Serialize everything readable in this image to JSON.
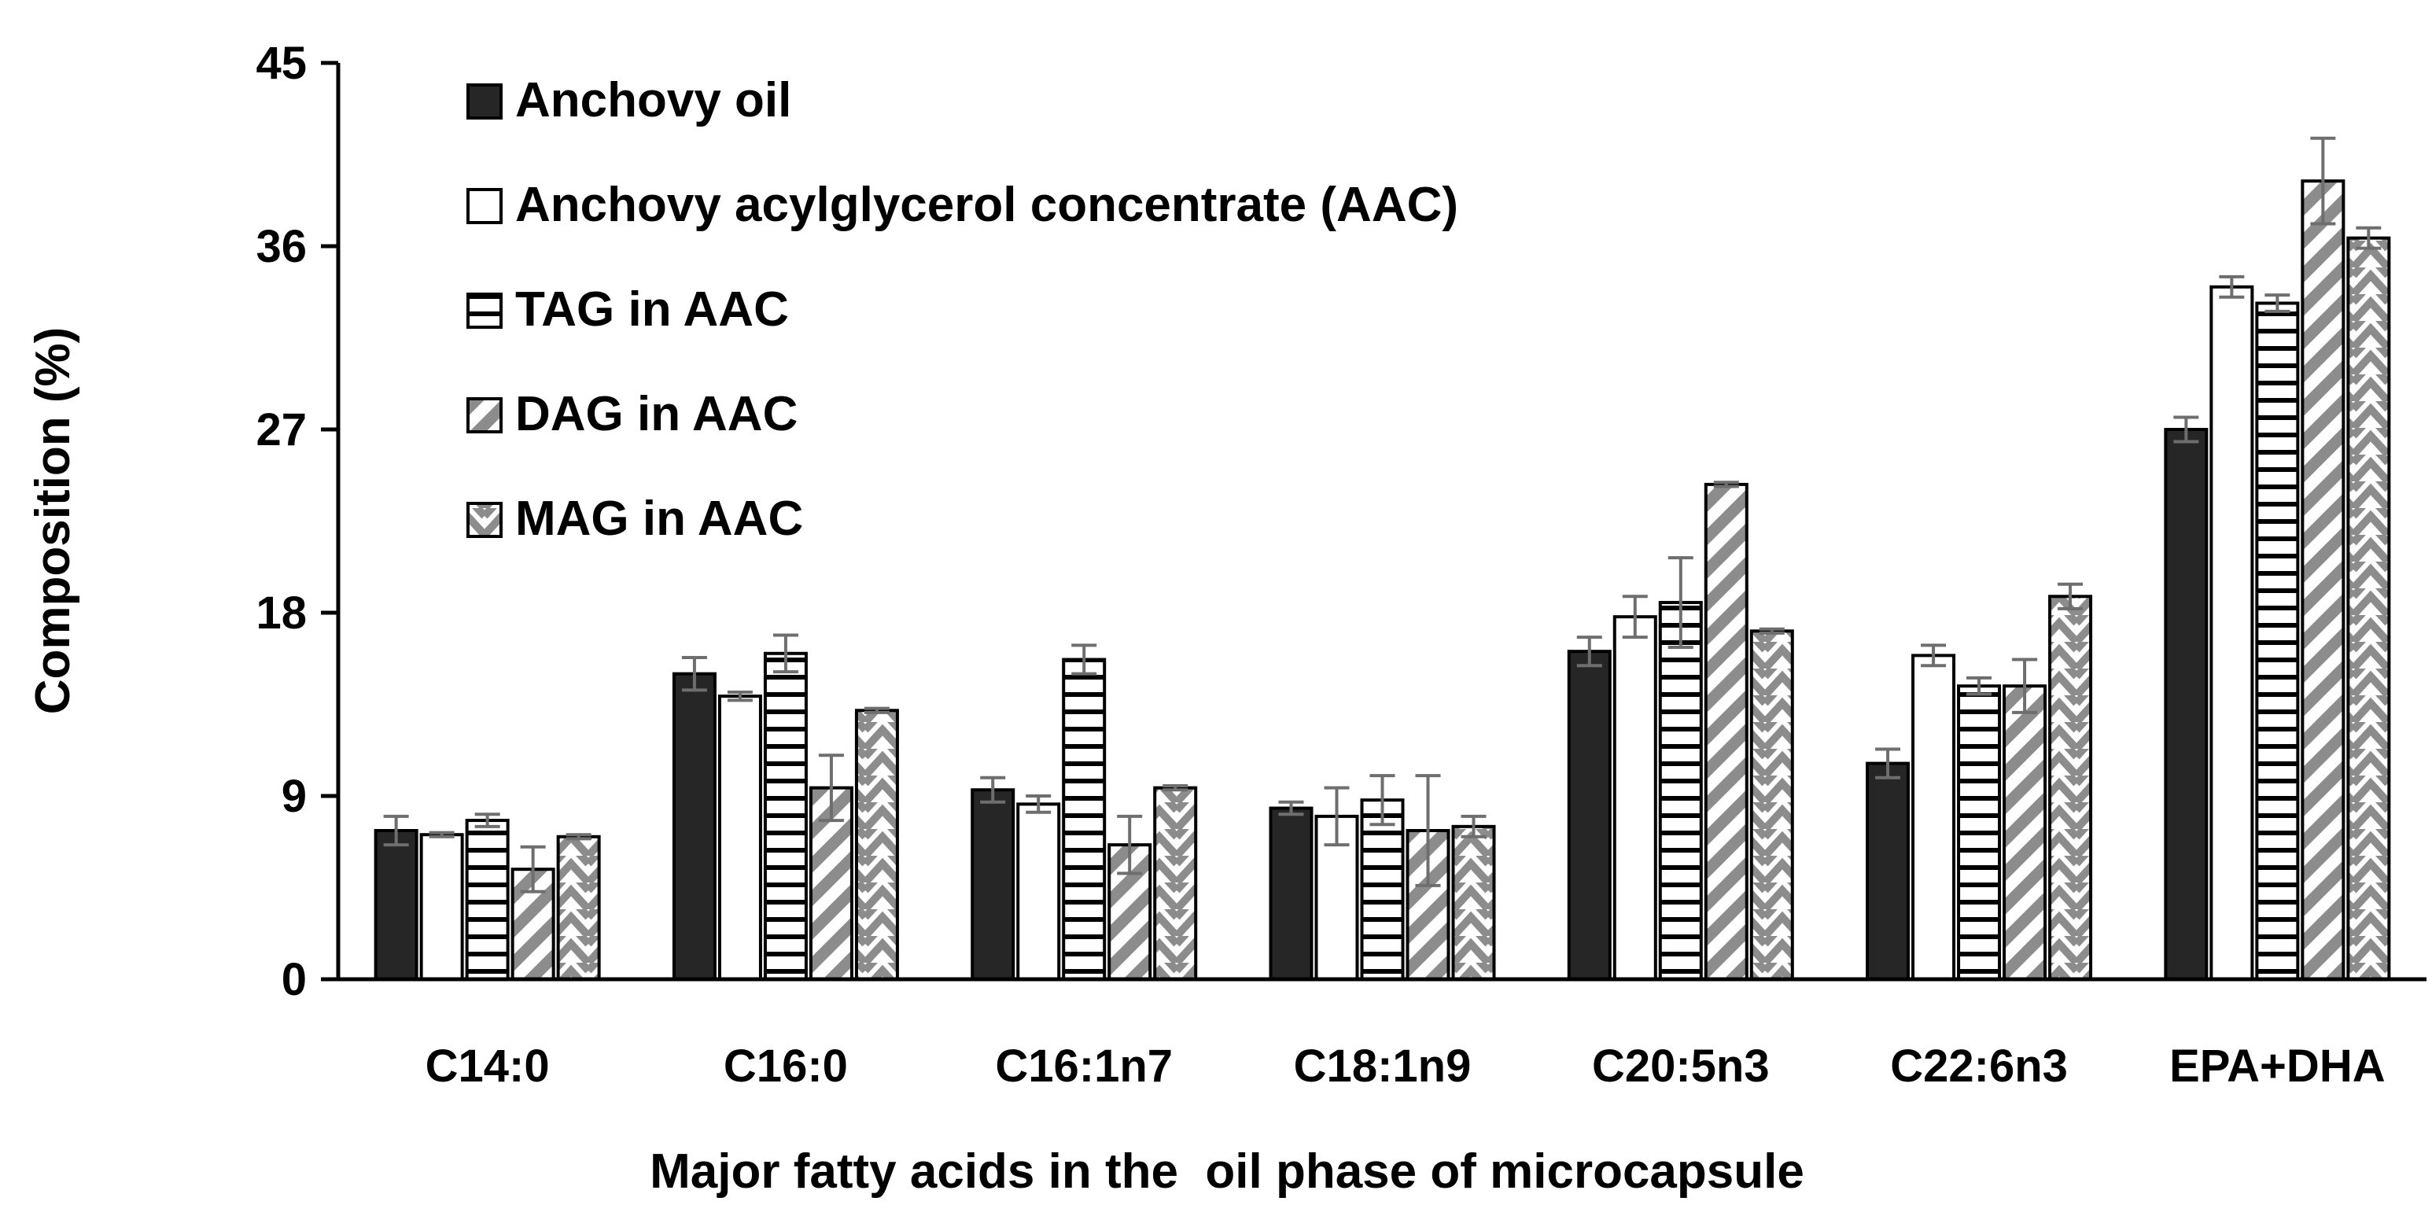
{
  "chart_data": {
    "type": "bar",
    "xlabel": "Major fatty acids in the  oil phase of microcapsule",
    "ylabel": "Composition (%)",
    "ylim": [
      0,
      45
    ],
    "yticks": [
      0,
      9,
      18,
      27,
      36,
      45
    ],
    "grid": false,
    "legend_position": "top-left",
    "categories": [
      "C14:0",
      "C16:0",
      "C16:1n7",
      "C18:1n9",
      "C20:5n3",
      "C22:6n3",
      "EPA+DHA"
    ],
    "series": [
      {
        "name": "Anchovy oil",
        "pattern": "solid-dark",
        "values": [
          7.3,
          15.0,
          9.3,
          8.4,
          16.1,
          10.6,
          27.0
        ],
        "errors": [
          0.7,
          0.8,
          0.6,
          0.3,
          0.7,
          0.7,
          0.6
        ]
      },
      {
        "name": "Anchovy acylglycerol concentrate (AAC)",
        "pattern": "white",
        "values": [
          7.1,
          13.9,
          8.6,
          8.0,
          17.8,
          15.9,
          34.0
        ],
        "errors": [
          0.1,
          0.2,
          0.4,
          1.4,
          1.0,
          0.5,
          0.5
        ]
      },
      {
        "name": "TAG in AAC",
        "pattern": "horizontal-lines",
        "values": [
          7.8,
          16.0,
          15.7,
          8.8,
          18.5,
          14.4,
          33.2
        ],
        "errors": [
          0.3,
          0.9,
          0.7,
          1.2,
          2.2,
          0.4,
          0.4
        ]
      },
      {
        "name": "DAG in AAC",
        "pattern": "diagonal-stripes",
        "values": [
          5.4,
          9.4,
          6.6,
          7.3,
          24.3,
          14.4,
          39.2
        ],
        "errors": [
          1.1,
          1.6,
          1.4,
          2.7,
          0.1,
          1.3,
          2.1
        ]
      },
      {
        "name": "MAG in AAC",
        "pattern": "zigzag",
        "values": [
          7.0,
          13.2,
          9.4,
          7.5,
          17.1,
          18.8,
          36.4
        ],
        "errors": [
          0.1,
          0.1,
          0.1,
          0.5,
          0.1,
          0.6,
          0.5
        ]
      }
    ]
  },
  "colors": {
    "axis": "#000000",
    "dark_fill": "#262626",
    "pattern_gray": "#8c8c8c",
    "error_bar": "#6e6e6e"
  }
}
